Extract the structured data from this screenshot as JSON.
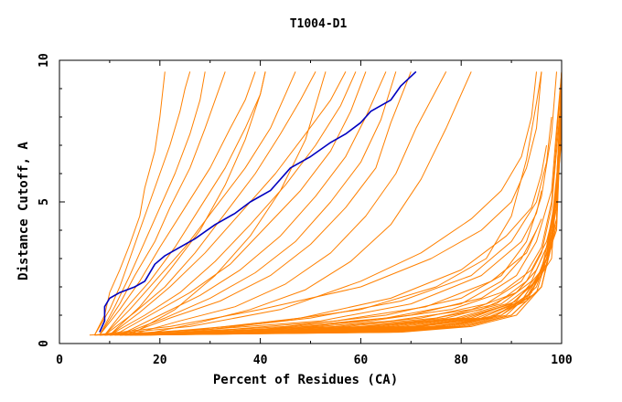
{
  "chart_data": {
    "type": "line",
    "title": "T1004-D1",
    "xlabel": "Percent of Residues (CA)",
    "ylabel": "Distance Cutoff, A",
    "xlim": [
      0,
      100
    ],
    "ylim": [
      0,
      10
    ],
    "xticks": [
      0,
      20,
      40,
      60,
      80,
      100
    ],
    "yticks": [
      0,
      5,
      10
    ],
    "grid": false,
    "legend": "none",
    "colors": {
      "model": "#ff8000",
      "highlight": "#0000c0",
      "axes": "#000000"
    },
    "series": [
      {
        "highlight": true,
        "x": [
          8,
          9,
          9,
          10,
          12,
          15,
          17,
          19,
          21,
          24,
          27,
          31,
          35,
          38,
          42,
          46,
          50,
          54,
          57,
          60,
          62,
          66,
          68,
          71
        ],
        "y": [
          0.4,
          0.8,
          1.3,
          1.6,
          1.8,
          2.0,
          2.2,
          2.8,
          3.1,
          3.4,
          3.7,
          4.2,
          4.6,
          5.0,
          5.4,
          6.2,
          6.6,
          7.1,
          7.4,
          7.8,
          8.2,
          8.6,
          9.1,
          9.6
        ]
      },
      {
        "x": [
          7,
          9,
          10,
          12,
          14,
          16,
          17,
          19,
          20,
          21
        ],
        "y": [
          0.3,
          1.0,
          1.8,
          2.6,
          3.5,
          4.5,
          5.5,
          6.8,
          8.0,
          9.6
        ]
      },
      {
        "x": [
          7,
          10,
          12,
          14,
          16,
          18,
          20,
          22,
          24,
          25,
          26
        ],
        "y": [
          0.3,
          1.2,
          2.0,
          3.0,
          4.0,
          5.0,
          6.0,
          7.0,
          8.2,
          9.0,
          9.6
        ]
      },
      {
        "x": [
          8,
          11,
          14,
          17,
          20,
          23,
          26,
          28,
          29
        ],
        "y": [
          0.3,
          1.3,
          2.4,
          3.6,
          4.8,
          6.0,
          7.4,
          8.6,
          9.6
        ]
      },
      {
        "x": [
          8,
          12,
          15,
          19,
          22,
          26,
          29,
          31,
          33
        ],
        "y": [
          0.3,
          1.4,
          2.4,
          3.6,
          4.8,
          6.2,
          7.6,
          8.6,
          9.6
        ]
      },
      {
        "x": [
          8,
          12,
          16,
          20,
          25,
          30,
          34,
          37,
          39
        ],
        "y": [
          0.3,
          1.2,
          2.2,
          3.4,
          4.8,
          6.2,
          7.6,
          8.6,
          9.6
        ]
      },
      {
        "x": [
          9,
          13,
          18,
          23,
          28,
          33,
          37,
          40,
          41
        ],
        "y": [
          0.3,
          1.2,
          2.2,
          3.4,
          4.8,
          6.2,
          7.6,
          8.8,
          9.6
        ]
      },
      {
        "x": [
          9,
          14,
          19,
          25,
          31,
          37,
          42,
          45,
          47
        ],
        "y": [
          0.3,
          1.2,
          2.2,
          3.4,
          4.8,
          6.2,
          7.6,
          8.8,
          9.6
        ]
      },
      {
        "x": [
          9,
          15,
          21,
          27,
          33,
          39,
          44,
          48,
          51
        ],
        "y": [
          0.3,
          1.1,
          2.0,
          3.2,
          4.6,
          6.0,
          7.4,
          8.6,
          9.6
        ]
      },
      {
        "x": [
          10,
          16,
          22,
          29,
          36,
          43,
          49,
          54,
          57
        ],
        "y": [
          0.3,
          1.1,
          2.0,
          3.2,
          4.6,
          6.0,
          7.4,
          8.6,
          9.6
        ]
      },
      {
        "x": [
          10,
          17,
          24,
          31,
          38,
          45,
          51,
          56,
          59
        ],
        "y": [
          0.3,
          1.0,
          1.8,
          2.9,
          4.2,
          5.6,
          7.0,
          8.4,
          9.6
        ]
      },
      {
        "x": [
          11,
          18,
          26,
          34,
          41,
          48,
          54,
          58,
          61
        ],
        "y": [
          0.3,
          1.0,
          1.8,
          2.8,
          4.1,
          5.4,
          6.8,
          8.2,
          9.6
        ]
      },
      {
        "x": [
          12,
          20,
          28,
          36,
          44,
          51,
          57,
          61,
          65
        ],
        "y": [
          0.3,
          1.0,
          1.7,
          2.6,
          3.8,
          5.2,
          6.6,
          8.0,
          9.6
        ]
      },
      {
        "x": [
          12,
          21,
          30,
          39,
          47,
          54,
          60,
          64,
          67
        ],
        "y": [
          0.3,
          0.9,
          1.6,
          2.5,
          3.6,
          5.0,
          6.4,
          7.9,
          9.6
        ]
      },
      {
        "x": [
          13,
          22,
          32,
          42,
          50,
          57,
          63,
          66,
          70
        ],
        "y": [
          0.3,
          0.9,
          1.5,
          2.4,
          3.5,
          4.8,
          6.2,
          7.8,
          9.6
        ]
      },
      {
        "x": [
          14,
          24,
          35,
          45,
          54,
          61,
          67,
          71,
          77
        ],
        "y": [
          0.3,
          0.8,
          1.3,
          2.1,
          3.2,
          4.5,
          6.0,
          7.6,
          9.6
        ]
      },
      {
        "x": [
          14,
          23,
          31,
          38,
          44,
          49,
          53
        ],
        "y": [
          0.3,
          1.2,
          2.4,
          3.8,
          5.4,
          7.2,
          9.6
        ]
      },
      {
        "x": [
          16,
          27,
          38,
          49,
          58,
          66,
          72,
          77,
          82
        ],
        "y": [
          0.3,
          0.7,
          1.2,
          1.9,
          2.9,
          4.2,
          5.8,
          7.6,
          9.6
        ]
      },
      {
        "x": [
          10,
          16,
          22,
          28,
          33,
          37,
          40,
          41
        ],
        "y": [
          0.3,
          1.3,
          2.6,
          4.0,
          5.6,
          7.2,
          8.8,
          9.6
        ]
      },
      {
        "x": [
          6,
          20,
          40,
          60,
          75,
          85,
          90,
          93,
          95,
          96
        ],
        "y": [
          0.3,
          0.4,
          0.7,
          1.2,
          2.0,
          3.0,
          4.5,
          6.5,
          8.5,
          9.6
        ]
      },
      {
        "x": [
          7,
          25,
          45,
          65,
          80,
          88,
          93,
          96,
          98,
          99
        ],
        "y": [
          0.3,
          0.4,
          0.6,
          1.0,
          1.6,
          2.4,
          3.6,
          5.2,
          7.4,
          9.6
        ]
      },
      {
        "x": [
          7,
          28,
          50,
          70,
          84,
          91,
          95,
          98,
          99,
          100
        ],
        "y": [
          0.3,
          0.4,
          0.6,
          1.0,
          1.6,
          2.4,
          3.6,
          5.4,
          7.6,
          9.6
        ]
      },
      {
        "x": [
          8,
          30,
          55,
          72,
          85,
          92,
          96,
          98,
          99,
          100
        ],
        "y": [
          0.3,
          0.4,
          0.6,
          0.9,
          1.4,
          2.2,
          3.4,
          5.0,
          7.2,
          9.6
        ]
      },
      {
        "x": [
          8,
          32,
          57,
          75,
          87,
          93,
          96,
          98,
          99,
          100
        ],
        "y": [
          0.3,
          0.4,
          0.6,
          0.9,
          1.4,
          2.2,
          3.2,
          4.8,
          6.8,
          9.0
        ]
      },
      {
        "x": [
          9,
          35,
          60,
          77,
          88,
          94,
          97,
          99,
          100
        ],
        "y": [
          0.3,
          0.4,
          0.6,
          0.9,
          1.4,
          2.2,
          3.4,
          5.4,
          8.6
        ]
      },
      {
        "x": [
          9,
          38,
          62,
          79,
          89,
          95,
          97,
          99,
          100
        ],
        "y": [
          0.3,
          0.4,
          0.6,
          0.9,
          1.4,
          2.2,
          3.2,
          5.2,
          8.2
        ]
      },
      {
        "x": [
          10,
          40,
          64,
          80,
          90,
          95,
          98,
          99,
          100
        ],
        "y": [
          0.3,
          0.4,
          0.6,
          0.9,
          1.4,
          2.2,
          3.4,
          5.6,
          9.6
        ]
      },
      {
        "x": [
          10,
          42,
          66,
          81,
          90,
          96,
          98,
          99,
          100
        ],
        "y": [
          0.3,
          0.4,
          0.6,
          0.9,
          1.4,
          2.4,
          3.6,
          5.8,
          9.0
        ]
      },
      {
        "x": [
          11,
          44,
          68,
          82,
          91,
          96,
          98,
          100
        ],
        "y": [
          0.3,
          0.4,
          0.6,
          0.9,
          1.5,
          2.6,
          4.2,
          7.6
        ]
      },
      {
        "x": [
          11,
          46,
          70,
          83,
          92,
          96,
          99,
          100
        ],
        "y": [
          0.3,
          0.4,
          0.6,
          0.9,
          1.5,
          2.6,
          4.4,
          8.0
        ]
      },
      {
        "x": [
          12,
          48,
          71,
          84,
          92,
          97,
          99,
          100
        ],
        "y": [
          0.3,
          0.4,
          0.6,
          0.9,
          1.5,
          2.8,
          4.8,
          8.6
        ]
      },
      {
        "x": [
          12,
          50,
          72,
          85,
          93,
          97,
          99,
          100
        ],
        "y": [
          0.3,
          0.4,
          0.6,
          0.9,
          1.5,
          2.8,
          5.0,
          9.0
        ]
      },
      {
        "x": [
          13,
          52,
          74,
          86,
          93,
          97,
          99,
          100
        ],
        "y": [
          0.3,
          0.4,
          0.6,
          0.9,
          1.6,
          3.0,
          5.2,
          9.4
        ]
      },
      {
        "x": [
          13,
          54,
          75,
          86,
          93,
          98,
          99,
          100
        ],
        "y": [
          0.3,
          0.4,
          0.6,
          0.9,
          1.6,
          3.0,
          5.6,
          9.6
        ]
      },
      {
        "x": [
          14,
          56,
          76,
          87,
          94,
          98,
          100
        ],
        "y": [
          0.3,
          0.4,
          0.6,
          1.0,
          1.8,
          3.4,
          7.2
        ]
      },
      {
        "x": [
          14,
          58,
          77,
          88,
          94,
          98,
          100
        ],
        "y": [
          0.3,
          0.4,
          0.6,
          1.0,
          1.8,
          3.6,
          7.6
        ]
      },
      {
        "x": [
          15,
          60,
          78,
          88,
          95,
          98,
          100
        ],
        "y": [
          0.3,
          0.4,
          0.6,
          1.0,
          1.8,
          3.6,
          8.0
        ]
      },
      {
        "x": [
          15,
          62,
          79,
          89,
          95,
          99,
          100
        ],
        "y": [
          0.3,
          0.4,
          0.6,
          1.0,
          2.0,
          4.0,
          8.4
        ]
      },
      {
        "x": [
          16,
          64,
          80,
          90,
          96,
          99,
          100
        ],
        "y": [
          0.3,
          0.4,
          0.6,
          1.0,
          2.0,
          4.2,
          8.8
        ]
      },
      {
        "x": [
          16,
          66,
          81,
          90,
          96,
          99,
          100
        ],
        "y": [
          0.3,
          0.4,
          0.6,
          1.0,
          2.0,
          4.2,
          9.2
        ]
      },
      {
        "x": [
          17,
          68,
          82,
          91,
          96,
          99,
          100
        ],
        "y": [
          0.3,
          0.4,
          0.6,
          1.0,
          2.0,
          4.4,
          9.6
        ]
      },
      {
        "x": [
          8,
          30,
          52,
          70,
          84,
          92,
          95,
          96
        ],
        "y": [
          0.3,
          0.5,
          0.8,
          1.4,
          2.4,
          3.6,
          4.6,
          5.4
        ]
      },
      {
        "x": [
          9,
          28,
          48,
          66,
          80,
          89,
          94,
          96,
          97
        ],
        "y": [
          0.3,
          0.5,
          0.9,
          1.6,
          2.6,
          3.8,
          4.8,
          6.0,
          7.0
        ]
      },
      {
        "x": [
          10,
          30,
          50,
          68,
          82,
          90,
          95,
          97,
          98
        ],
        "y": [
          0.3,
          0.5,
          0.9,
          1.5,
          2.4,
          3.6,
          5.0,
          6.4,
          8.0
        ]
      },
      {
        "x": [
          12,
          34,
          55,
          73,
          86,
          93,
          96
        ],
        "y": [
          0.3,
          0.5,
          0.8,
          1.3,
          2.2,
          3.2,
          4.4
        ]
      },
      {
        "x": [
          12,
          40,
          65,
          80,
          88,
          92,
          95
        ],
        "y": [
          0.3,
          0.5,
          0.9,
          1.4,
          2.2,
          3.0,
          4.0
        ]
      },
      {
        "x": [
          13,
          42,
          62,
          78,
          88,
          94,
          97,
          99
        ],
        "y": [
          0.3,
          0.5,
          0.8,
          1.2,
          1.8,
          2.6,
          3.6,
          5.0
        ]
      },
      {
        "x": [
          14,
          44,
          66,
          82,
          91,
          95,
          98
        ],
        "y": [
          0.3,
          0.5,
          0.8,
          1.2,
          1.8,
          2.6,
          3.8
        ]
      },
      {
        "x": [
          7,
          22,
          40,
          60,
          74,
          84,
          90,
          93,
          95,
          96
        ],
        "y": [
          0.3,
          0.6,
          1.2,
          2.0,
          3.0,
          4.0,
          5.0,
          6.2,
          7.6,
          9.6
        ]
      },
      {
        "x": [
          8,
          26,
          44,
          60,
          72,
          82,
          88,
          92,
          94,
          95
        ],
        "y": [
          0.3,
          0.6,
          1.2,
          2.2,
          3.2,
          4.4,
          5.4,
          6.6,
          8.0,
          9.6
        ]
      },
      {
        "x": [
          18,
          55,
          72,
          84,
          91,
          95,
          97,
          98
        ],
        "y": [
          0.3,
          0.5,
          0.8,
          1.2,
          1.8,
          2.6,
          3.4,
          4.2
        ]
      }
    ]
  }
}
